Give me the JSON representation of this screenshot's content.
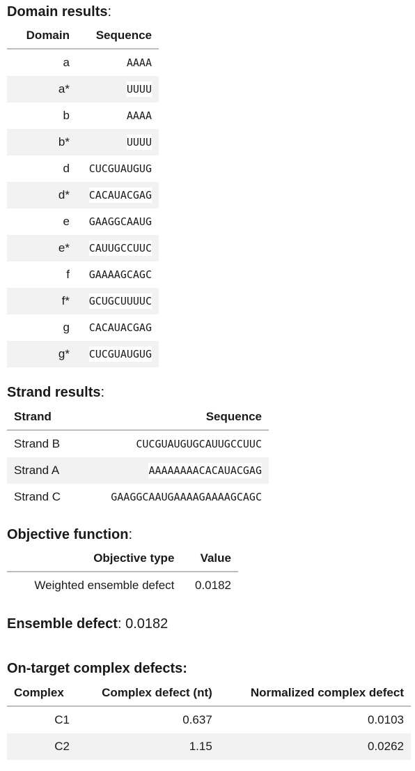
{
  "domain_section": {
    "title": "Domain results",
    "colon": ":",
    "headers": [
      "Domain",
      "Sequence"
    ],
    "rows": [
      {
        "domain": "a",
        "sequence": "AAAA"
      },
      {
        "domain": "a*",
        "sequence": "UUUU"
      },
      {
        "domain": "b",
        "sequence": "AAAA"
      },
      {
        "domain": "b*",
        "sequence": "UUUU"
      },
      {
        "domain": "d",
        "sequence": "CUCGUAUGUG"
      },
      {
        "domain": "d*",
        "sequence": "CACAUACGAG"
      },
      {
        "domain": "e",
        "sequence": "GAAGGCAAUG"
      },
      {
        "domain": "e*",
        "sequence": "CAUUGCCUUC"
      },
      {
        "domain": "f",
        "sequence": "GAAAAGCAGC"
      },
      {
        "domain": "f*",
        "sequence": "GCUGCUUUUC"
      },
      {
        "domain": "g",
        "sequence": "CACAUACGAG"
      },
      {
        "domain": "g*",
        "sequence": "CUCGUAUGUG"
      }
    ]
  },
  "strand_section": {
    "title": "Strand results",
    "colon": ":",
    "headers": [
      "Strand",
      "Sequence"
    ],
    "rows": [
      {
        "strand": "Strand B",
        "sequence": "CUCGUAUGUGCAUUGCCUUC"
      },
      {
        "strand": "Strand A",
        "sequence": "AAAAAAAACACAUACGAG"
      },
      {
        "strand": "Strand C",
        "sequence": "GAAGGCAAUGAAAAGAAAAGCAGC"
      }
    ]
  },
  "objective_section": {
    "title": "Objective function",
    "colon": ":",
    "headers": [
      "Objective type",
      "Value"
    ],
    "rows": [
      {
        "type": "Weighted ensemble defect",
        "value": "0.0182"
      }
    ]
  },
  "ensemble_defect": {
    "label": "Ensemble defect",
    "value": ": 0.0182"
  },
  "complex_section": {
    "title": "On-target complex defects:",
    "headers": [
      "Complex",
      "Complex defect (nt)",
      "Normalized complex defect"
    ],
    "rows": [
      {
        "complex": "C1",
        "defect": "0.637",
        "normalized": "0.0103"
      },
      {
        "complex": "C2",
        "defect": "1.15",
        "normalized": "0.0262"
      }
    ]
  }
}
